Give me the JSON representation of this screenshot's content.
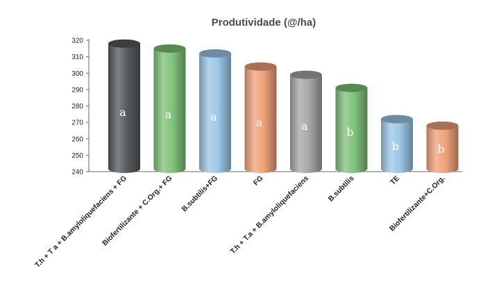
{
  "chart_data": {
    "type": "bar",
    "title": "Produtividade (@/ha)",
    "xlabel": "",
    "ylabel": "",
    "ylim": [
      240,
      320
    ],
    "yticks": [
      240,
      250,
      260,
      270,
      280,
      290,
      300,
      310,
      320
    ],
    "grid": false,
    "legend": "none",
    "categories": [
      "T.h + T a + B.amyloliquefaciens + FG",
      "Biofertilizante + C.Org.+ FG",
      "B.subtilis+FG",
      "FG",
      "T.h + T.a + B.amyloliquefaciens",
      "B.subtilis",
      "TE",
      "Biofertilizante+C.Org."
    ],
    "values": [
      318,
      315,
      312,
      304,
      299,
      291,
      272,
      268
    ],
    "labels": [
      "a",
      "a",
      "a",
      "a",
      "a",
      "b",
      "b",
      "b"
    ],
    "colors": [
      "#55595c",
      "#7fc27a",
      "#9cc6e6",
      "#f0a27a",
      "#a4a6a8",
      "#7fc27a",
      "#9cc6e6",
      "#f0a27a"
    ]
  }
}
